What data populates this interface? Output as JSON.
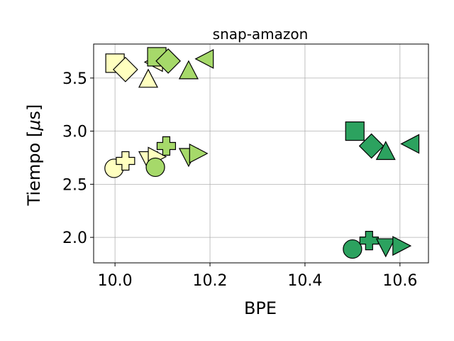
{
  "chart_data": {
    "type": "scatter",
    "title": "snap-amazon",
    "xlabel": "BPE",
    "ylabel_text": "Tiempo [",
    "ylabel_mu": "μ",
    "ylabel_unit": "s]",
    "xlim": [
      9.955,
      10.66
    ],
    "ylim": [
      1.76,
      3.82
    ],
    "xticks": [
      10.0,
      10.2,
      10.4,
      10.6
    ],
    "xtick_labels": [
      "10.0",
      "10.2",
      "10.4",
      "10.6"
    ],
    "yticks": [
      2.0,
      2.5,
      3.0,
      3.5
    ],
    "ytick_labels": [
      "2.0",
      "2.5",
      "3.0",
      "3.5"
    ],
    "grid": true,
    "colors": {
      "light_yellow": "#ffffbf",
      "light_green": "#a6d96a",
      "dark_green": "#2ca25f"
    },
    "points": [
      {
        "x": 10.0,
        "y": 3.64,
        "marker": "square",
        "color": "light_yellow"
      },
      {
        "x": 10.022,
        "y": 3.58,
        "marker": "diamond",
        "color": "light_yellow"
      },
      {
        "x": 10.07,
        "y": 3.48,
        "marker": "triangle-up",
        "color": "light_yellow"
      },
      {
        "x": 10.085,
        "y": 3.65,
        "marker": "triangle-left",
        "color": "light_yellow"
      },
      {
        "x": 10.088,
        "y": 3.7,
        "marker": "square",
        "color": "light_green"
      },
      {
        "x": 10.112,
        "y": 3.66,
        "marker": "diamond",
        "color": "light_green"
      },
      {
        "x": 10.155,
        "y": 3.56,
        "marker": "triangle-up",
        "color": "light_green"
      },
      {
        "x": 10.192,
        "y": 3.68,
        "marker": "triangle-left",
        "color": "light_green"
      },
      {
        "x": 9.998,
        "y": 2.65,
        "marker": "circle",
        "color": "light_yellow"
      },
      {
        "x": 10.022,
        "y": 2.72,
        "marker": "plus",
        "color": "light_yellow"
      },
      {
        "x": 10.07,
        "y": 2.74,
        "marker": "triangle-down",
        "color": "light_yellow"
      },
      {
        "x": 10.085,
        "y": 2.76,
        "marker": "triangle-right",
        "color": "light_yellow"
      },
      {
        "x": 10.085,
        "y": 2.66,
        "marker": "circle",
        "color": "light_green"
      },
      {
        "x": 10.108,
        "y": 2.86,
        "marker": "plus",
        "color": "light_green"
      },
      {
        "x": 10.155,
        "y": 2.77,
        "marker": "triangle-down",
        "color": "light_green"
      },
      {
        "x": 10.172,
        "y": 2.79,
        "marker": "triangle-right",
        "color": "light_green"
      },
      {
        "x": 10.505,
        "y": 3.0,
        "marker": "square",
        "color": "dark_green"
      },
      {
        "x": 10.54,
        "y": 2.86,
        "marker": "diamond",
        "color": "dark_green"
      },
      {
        "x": 10.57,
        "y": 2.8,
        "marker": "triangle-up",
        "color": "dark_green"
      },
      {
        "x": 10.625,
        "y": 2.88,
        "marker": "triangle-left",
        "color": "dark_green"
      },
      {
        "x": 10.5,
        "y": 1.89,
        "marker": "circle",
        "color": "dark_green"
      },
      {
        "x": 10.535,
        "y": 1.97,
        "marker": "plus",
        "color": "dark_green"
      },
      {
        "x": 10.57,
        "y": 1.92,
        "marker": "triangle-down",
        "color": "dark_green"
      },
      {
        "x": 10.6,
        "y": 1.92,
        "marker": "triangle-right",
        "color": "dark_green"
      }
    ]
  }
}
